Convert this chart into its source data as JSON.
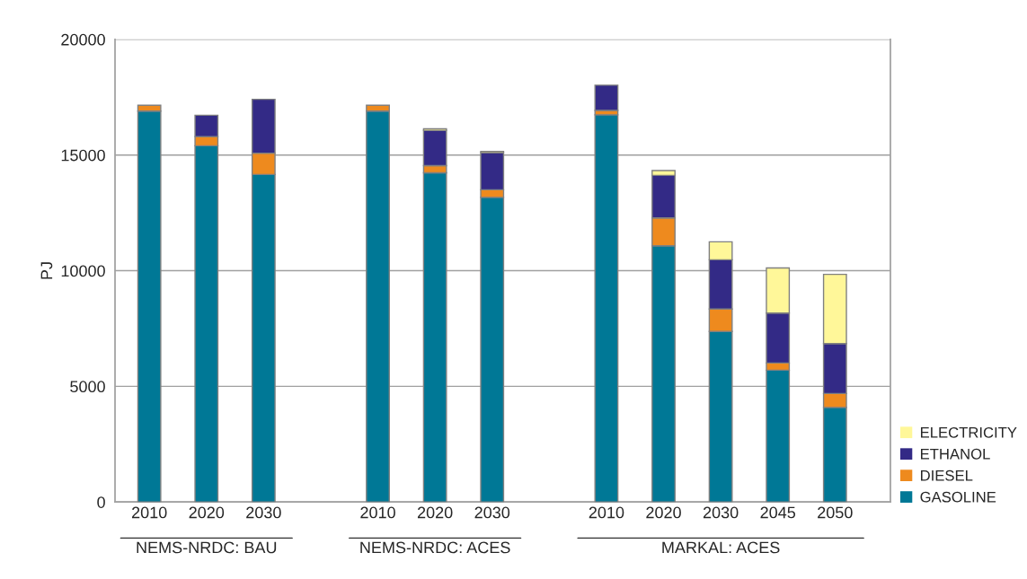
{
  "chart_data": {
    "type": "bar",
    "stacked": true,
    "ylabel": "PJ",
    "categories": [
      "2010",
      "2020",
      "2030",
      null,
      "2010",
      "2020",
      "2030",
      null,
      "2010",
      "2020",
      "2030",
      "2045",
      "2050"
    ],
    "series": [
      {
        "name": "GASOLINE",
        "color": "#007896",
        "values": [
          16900,
          15400,
          14160,
          null,
          16900,
          14230,
          13170,
          null,
          16740,
          11080,
          7370,
          5700,
          4090
        ]
      },
      {
        "name": "DIESEL",
        "color": "#ee8a1e",
        "values": [
          250,
          400,
          920,
          null,
          250,
          310,
          330,
          null,
          190,
          1200,
          970,
          310,
          600
        ]
      },
      {
        "name": "ETHANOL",
        "color": "#332a86",
        "values": [
          null,
          920,
          2330,
          null,
          null,
          1530,
          1600,
          null,
          1090,
          1840,
          2130,
          2160,
          2160
        ]
      },
      {
        "name": "ELECTRICITY",
        "color": "#fff799",
        "values": [
          null,
          null,
          null,
          null,
          null,
          70,
          60,
          null,
          null,
          210,
          780,
          1950,
          2990
        ]
      }
    ],
    "annotations": [
      "NEMS-NRDC: BAU",
      "NEMS-NRDC: ACES",
      "MARKAL: ACES"
    ],
    "ylim": [
      0,
      20000
    ],
    "yticks": [
      0,
      5000,
      10000,
      15000,
      20000
    ],
    "grid": "y",
    "legend": "bottom right"
  }
}
